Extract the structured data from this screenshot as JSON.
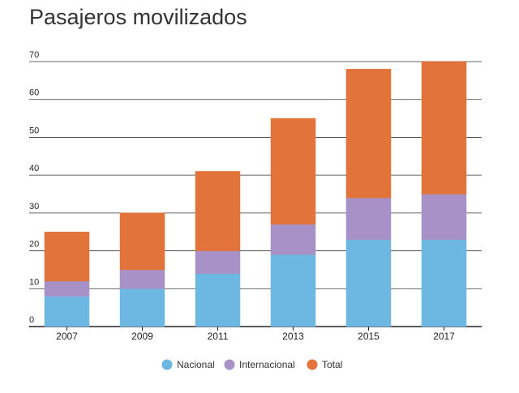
{
  "chart_data": {
    "type": "bar",
    "stacked": true,
    "title": "Pasajeros movilizados",
    "xlabel": "",
    "ylabel": "",
    "categories": [
      "2007",
      "2009",
      "2011",
      "2013",
      "2015",
      "2017"
    ],
    "series": [
      {
        "name": "Nacional",
        "color": "#6cb8e3",
        "values": [
          8,
          10,
          14,
          19,
          23,
          23
        ]
      },
      {
        "name": "Internacional",
        "color": "#a791c6",
        "values": [
          4,
          5,
          6,
          8,
          11,
          12
        ]
      },
      {
        "name": "Total",
        "color": "#e2733b",
        "values": [
          13,
          15,
          21,
          28,
          34,
          35
        ]
      }
    ],
    "ylim": [
      0,
      70
    ],
    "yticks": [
      0,
      10,
      20,
      30,
      40,
      50,
      60,
      70
    ],
    "grid": true,
    "legend_position": "bottom"
  }
}
